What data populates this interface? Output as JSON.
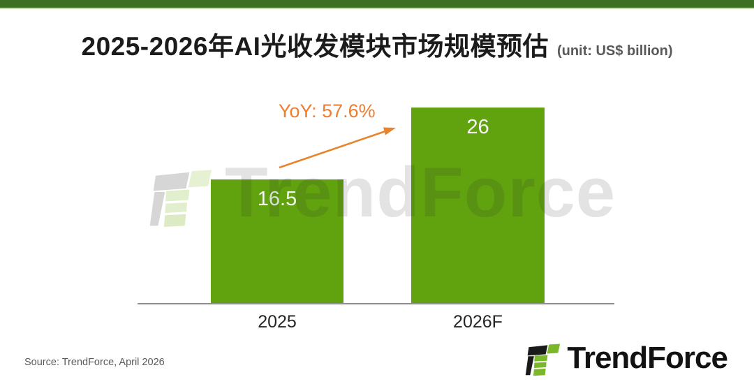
{
  "header": {
    "title": "2025-2026年AI光收发模块市场规模预估",
    "unit_label": "(unit: US$ billion)"
  },
  "chart_data": {
    "type": "bar",
    "title": "2025-2026年AI光收发模块市场规模预估",
    "unit": "US$ billion",
    "categories": [
      "2025",
      "2026F"
    ],
    "values": [
      16.5,
      26
    ],
    "value_labels": [
      "16.5",
      "26"
    ],
    "annotation": {
      "text": "YoY: 57.6%",
      "yoy_percent": 57.6,
      "from_category": "2025",
      "to_category": "2026F"
    },
    "ylim": [
      0,
      28
    ],
    "grid": false,
    "legend": false,
    "bar_color": "#61A30F",
    "value_label_color": "#F7FAF2",
    "annotation_color": "#ED7D31"
  },
  "watermark": {
    "text": "TrendForce"
  },
  "footer": {
    "source": "Source: TrendForce, April 2026",
    "logo_text": "TrendForce"
  },
  "colors": {
    "top_strip_green": "#3E7023",
    "top_strip_underline": "#C9DCB3",
    "bar_green": "#61A30F",
    "accent_orange": "#ED7D31",
    "axis_gray": "#8F8F8F",
    "muted_text_gray": "#595959",
    "title_black": "#1B1B1B",
    "logo_green": "#7AB729",
    "logo_black": "#1A1A1A"
  }
}
